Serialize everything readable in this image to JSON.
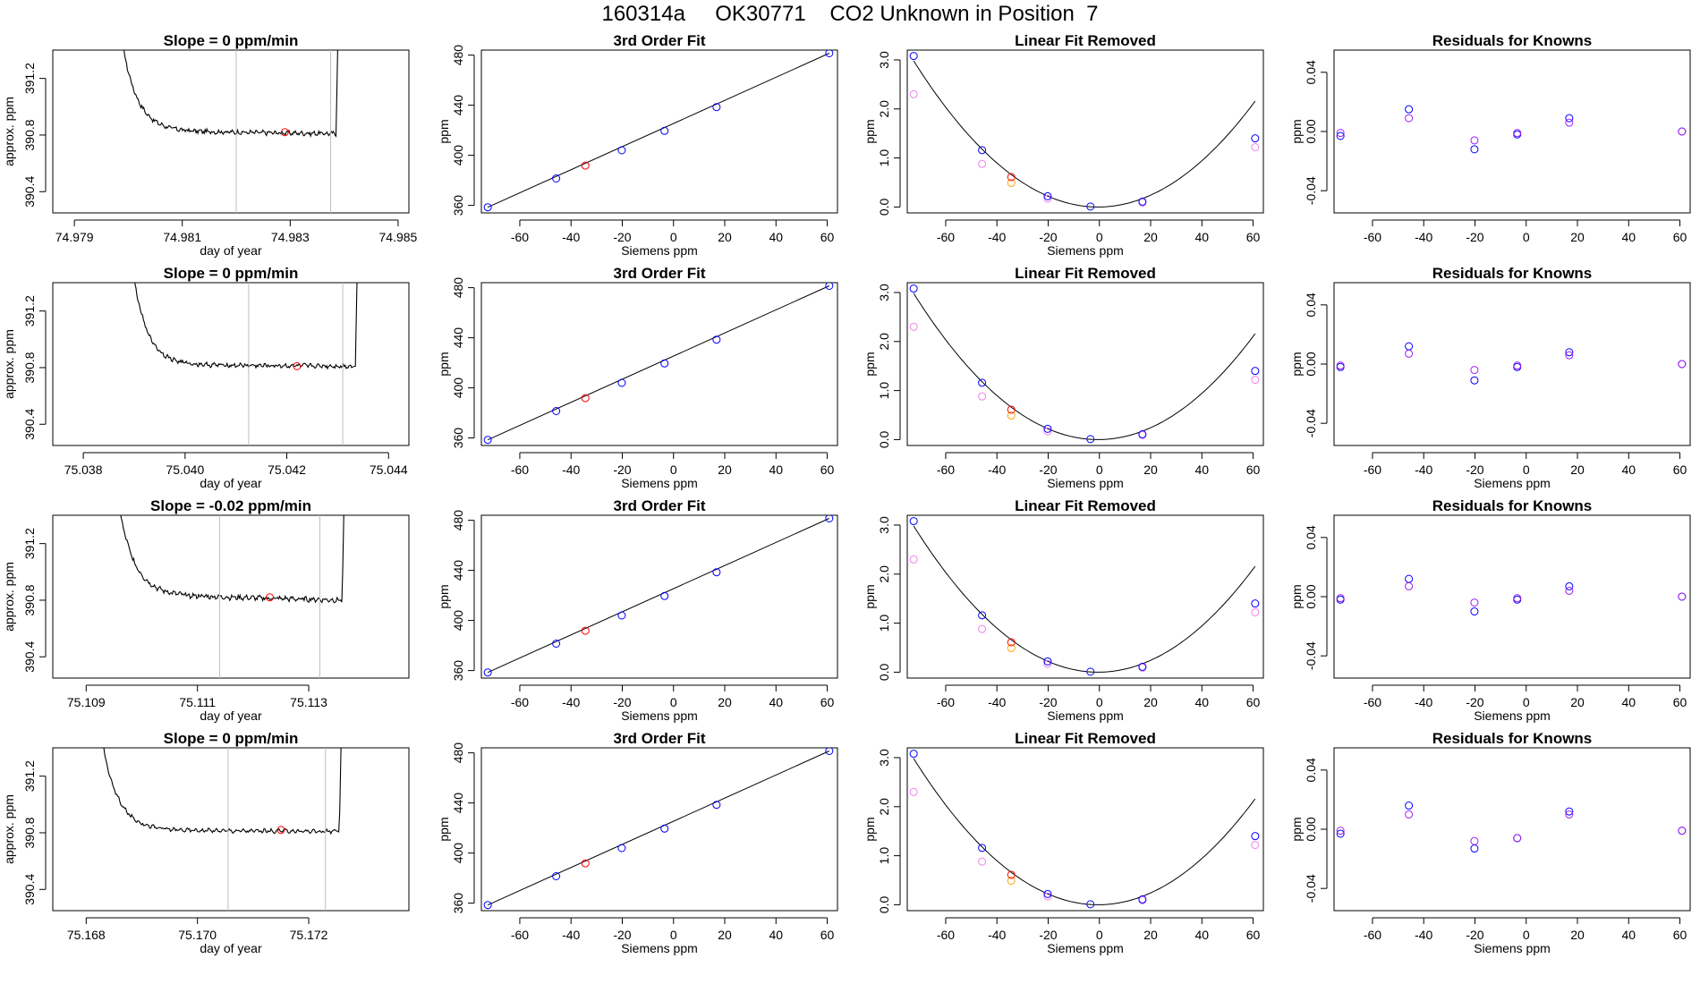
{
  "page_title": "160314a     OK30771    CO2 Unknown in Position  7",
  "colors": {
    "axis": "#000000",
    "trace": "#000000",
    "vline": "#bebebe",
    "blue": "#0000ff",
    "red": "#ff0000",
    "orange": "#ffa500",
    "violet": "#ee82ee",
    "purple": "#a020f0",
    "curve": "#000000"
  },
  "chart_data": [
    {
      "type": "line",
      "panel": "trace",
      "title": "Slope =  0  ppm/min",
      "xlabel": "day of year",
      "ylabel": "approx. ppm",
      "xlim": [
        74.9786,
        74.9852
      ],
      "ylim": [
        390.25,
        391.4
      ],
      "xticks": [
        74.979,
        74.981,
        74.983,
        74.985
      ],
      "xtick_labels": [
        "74.979",
        "74.981",
        "74.983",
        "74.985"
      ],
      "yticks": [
        390.4,
        390.8,
        391.2
      ],
      "ytick_labels": [
        "390.4",
        "390.8",
        "391.2"
      ],
      "trace": {
        "start": 74.9799,
        "rise": 74.98385,
        "plateau": 390.83,
        "drift": -0.02,
        "noise": 0.012,
        "amp": 0.6
      },
      "vlines": [
        74.982,
        74.98375
      ],
      "point": {
        "x": 74.9829,
        "y": 390.82
      }
    },
    {
      "type": "scatter",
      "panel": "fit",
      "title": "3rd Order Fit",
      "xlabel": "Siemens ppm",
      "ylabel": "ppm",
      "xlim": [
        -75,
        64
      ],
      "ylim": [
        354,
        484
      ],
      "xticks": [
        -60,
        -40,
        -20,
        0,
        20,
        40,
        60
      ],
      "yticks": [
        360,
        400,
        440,
        480
      ],
      "ytick_labels": [
        "360",
        "400",
        "440",
        "480"
      ],
      "line": [
        [
          -72.5,
          358.5
        ],
        [
          60.8,
          481.5
        ]
      ],
      "points_blue": [
        [
          -72.5,
          358.5
        ],
        [
          -45.8,
          381.5
        ],
        [
          -20.2,
          404.0
        ],
        [
          -3.5,
          419.5
        ],
        [
          16.8,
          438.5
        ],
        [
          60.8,
          481.5
        ]
      ],
      "points_red": [
        [
          -34.4,
          391.8
        ]
      ]
    },
    {
      "type": "scatter",
      "panel": "linear_removed",
      "title": "Linear Fit Removed",
      "xlabel": "Siemens ppm",
      "ylabel": "ppm",
      "xlim": [
        -75,
        64
      ],
      "ylim": [
        -0.12,
        3.2
      ],
      "xticks": [
        -60,
        -40,
        -20,
        0,
        20,
        40,
        60
      ],
      "yticks": [
        0.0,
        1.0,
        2.0,
        3.0
      ],
      "ytick_labels": [
        "0.0",
        "1.0",
        "2.0",
        "3.0"
      ],
      "curve": {
        "vertex_x": -0.5,
        "vertex_y": 0.0,
        "k": 0.000575,
        "xmin": -72.5,
        "xmax": 60.8
      },
      "points_blue": [
        [
          -72.5,
          3.08
        ],
        [
          -45.8,
          1.16
        ],
        [
          -20.2,
          0.22
        ],
        [
          -3.5,
          0.01
        ],
        [
          16.8,
          0.11
        ],
        [
          60.8,
          1.4
        ]
      ],
      "points_violet": [
        [
          -72.5,
          2.3
        ],
        [
          -45.8,
          0.88
        ],
        [
          -20.2,
          0.17
        ],
        [
          16.8,
          0.09
        ],
        [
          60.8,
          1.22
        ]
      ],
      "points_red": [
        [
          -34.4,
          0.61
        ]
      ],
      "points_orange": [
        [
          -34.4,
          0.49
        ]
      ]
    },
    {
      "type": "scatter",
      "panel": "residuals",
      "title": "Residuals for Knowns",
      "xlabel": "",
      "ylabel": "ppm",
      "xlim": [
        -75,
        64
      ],
      "ylim": [
        -0.055,
        0.055
      ],
      "xticks": [
        -60,
        -40,
        -20,
        0,
        20,
        40,
        60
      ],
      "yticks": [
        -0.04,
        0.0,
        0.04
      ],
      "ytick_labels": [
        "-0.04",
        "0.00",
        "0.04"
      ],
      "points_blue": [
        [
          -72.5,
          -0.003
        ],
        [
          -45.8,
          0.015
        ],
        [
          -20.2,
          -0.012
        ],
        [
          -3.5,
          -0.002
        ],
        [
          16.8,
          0.009
        ],
        [
          60.8,
          0.0
        ]
      ],
      "points_violet": [
        [
          -72.5,
          -0.001
        ],
        [
          -45.8,
          0.009
        ],
        [
          -20.2,
          -0.006
        ],
        [
          -3.5,
          -0.001
        ],
        [
          16.8,
          0.006
        ],
        [
          60.8,
          0.0
        ]
      ]
    },
    {
      "type": "line",
      "panel": "trace",
      "title": "Slope =  0  ppm/min",
      "xlabel": "day of year",
      "ylabel": "approx. ppm",
      "xlim": [
        75.0374,
        75.0444
      ],
      "ylim": [
        390.25,
        391.4
      ],
      "xticks": [
        75.038,
        75.04,
        75.042,
        75.044
      ],
      "xtick_labels": [
        "75.038",
        "75.040",
        "75.042",
        "75.044"
      ],
      "yticks": [
        390.4,
        390.8,
        391.2
      ],
      "ytick_labels": [
        "390.4",
        "390.8",
        "391.2"
      ],
      "trace": {
        "start": 75.039,
        "rise": 75.04335,
        "plateau": 390.82,
        "drift": -0.01,
        "noise": 0.012,
        "amp": 0.6
      },
      "vlines": [
        75.04125,
        75.0431
      ],
      "point": {
        "x": 75.0422,
        "y": 390.81
      }
    },
    {
      "type": "scatter",
      "panel": "fit",
      "title": "3rd Order Fit",
      "xlabel": "Siemens ppm",
      "ylabel": "ppm",
      "xlim": [
        -75,
        64
      ],
      "ylim": [
        354,
        484
      ],
      "xticks": [
        -60,
        -40,
        -20,
        0,
        20,
        40,
        60
      ],
      "yticks": [
        360,
        400,
        440,
        480
      ],
      "ytick_labels": [
        "360",
        "400",
        "440",
        "480"
      ],
      "line": [
        [
          -72.5,
          358.5
        ],
        [
          60.8,
          481.5
        ]
      ],
      "points_blue": [
        [
          -72.5,
          358.5
        ],
        [
          -45.8,
          381.5
        ],
        [
          -20.2,
          404.0
        ],
        [
          -3.5,
          419.5
        ],
        [
          16.8,
          438.5
        ],
        [
          60.8,
          481.5
        ]
      ],
      "points_red": [
        [
          -34.4,
          391.8
        ]
      ]
    },
    {
      "type": "scatter",
      "panel": "linear_removed",
      "title": "Linear Fit Removed",
      "xlabel": "Siemens ppm",
      "ylabel": "ppm",
      "xlim": [
        -75,
        64
      ],
      "ylim": [
        -0.12,
        3.2
      ],
      "xticks": [
        -60,
        -40,
        -20,
        0,
        20,
        40,
        60
      ],
      "yticks": [
        0.0,
        1.0,
        2.0,
        3.0
      ],
      "ytick_labels": [
        "0.0",
        "1.0",
        "2.0",
        "3.0"
      ],
      "curve": {
        "vertex_x": -0.5,
        "vertex_y": 0.0,
        "k": 0.000575,
        "xmin": -72.5,
        "xmax": 60.8
      },
      "points_blue": [
        [
          -72.5,
          3.08
        ],
        [
          -45.8,
          1.16
        ],
        [
          -20.2,
          0.22
        ],
        [
          -3.5,
          0.01
        ],
        [
          16.8,
          0.11
        ],
        [
          60.8,
          1.4
        ]
      ],
      "points_violet": [
        [
          -72.5,
          2.3
        ],
        [
          -45.8,
          0.88
        ],
        [
          -20.2,
          0.17
        ],
        [
          16.8,
          0.09
        ],
        [
          60.8,
          1.22
        ]
      ],
      "points_red": [
        [
          -34.4,
          0.61
        ]
      ],
      "points_orange": [
        [
          -34.4,
          0.49
        ]
      ]
    },
    {
      "type": "scatter",
      "panel": "residuals",
      "title": "Residuals for Knowns",
      "xlabel": "Siemens ppm",
      "ylabel": "ppm",
      "xlim": [
        -75,
        64
      ],
      "ylim": [
        -0.055,
        0.055
      ],
      "xticks": [
        -60,
        -40,
        -20,
        0,
        20,
        40,
        60
      ],
      "yticks": [
        -0.04,
        0.0,
        0.04
      ],
      "ytick_labels": [
        "-0.04",
        "0.00",
        "0.04"
      ],
      "points_blue": [
        [
          -72.5,
          -0.002
        ],
        [
          -45.8,
          0.012
        ],
        [
          -20.2,
          -0.011
        ],
        [
          -3.5,
          -0.002
        ],
        [
          16.8,
          0.008
        ],
        [
          60.8,
          0.0
        ]
      ],
      "points_violet": [
        [
          -72.5,
          -0.001
        ],
        [
          -45.8,
          0.007
        ],
        [
          -20.2,
          -0.004
        ],
        [
          -3.5,
          -0.001
        ],
        [
          16.8,
          0.006
        ],
        [
          60.8,
          0.0
        ]
      ]
    },
    {
      "type": "line",
      "panel": "trace",
      "title": "Slope =  -0.02  ppm/min",
      "xlabel": "day of year",
      "ylabel": "approx. ppm",
      "xlim": [
        75.1084,
        75.1148
      ],
      "ylim": [
        390.25,
        391.4
      ],
      "xticks": [
        75.109,
        75.111,
        75.113
      ],
      "xtick_labels": [
        "75.109",
        "75.111",
        "75.113"
      ],
      "yticks": [
        390.4,
        390.8,
        391.2
      ],
      "ytick_labels": [
        "390.4",
        "390.8",
        "391.2"
      ],
      "trace": {
        "start": 75.1096,
        "rise": 75.1136,
        "plateau": 390.84,
        "drift": -0.04,
        "noise": 0.014,
        "amp": 0.6
      },
      "vlines": [
        75.1114,
        75.1132
      ],
      "point": {
        "x": 75.1123,
        "y": 390.82
      }
    },
    {
      "type": "scatter",
      "panel": "fit",
      "title": "3rd Order Fit",
      "xlabel": "Siemens ppm",
      "ylabel": "ppm",
      "xlim": [
        -75,
        64
      ],
      "ylim": [
        354,
        484
      ],
      "xticks": [
        -60,
        -40,
        -20,
        0,
        20,
        40,
        60
      ],
      "yticks": [
        360,
        400,
        440,
        480
      ],
      "ytick_labels": [
        "360",
        "400",
        "440",
        "480"
      ],
      "line": [
        [
          -72.5,
          358.5
        ],
        [
          60.8,
          481.5
        ]
      ],
      "points_blue": [
        [
          -72.5,
          358.5
        ],
        [
          -45.8,
          381.5
        ],
        [
          -20.2,
          404.0
        ],
        [
          -3.5,
          419.5
        ],
        [
          16.8,
          438.5
        ],
        [
          60.8,
          481.5
        ]
      ],
      "points_red": [
        [
          -34.4,
          391.8
        ]
      ]
    },
    {
      "type": "scatter",
      "panel": "linear_removed",
      "title": "Linear Fit Removed",
      "xlabel": "Siemens ppm",
      "ylabel": "ppm",
      "xlim": [
        -75,
        64
      ],
      "ylim": [
        -0.12,
        3.2
      ],
      "xticks": [
        -60,
        -40,
        -20,
        0,
        20,
        40,
        60
      ],
      "yticks": [
        0.0,
        1.0,
        2.0,
        3.0
      ],
      "ytick_labels": [
        "0.0",
        "1.0",
        "2.0",
        "3.0"
      ],
      "curve": {
        "vertex_x": -0.5,
        "vertex_y": 0.0,
        "k": 0.000575,
        "xmin": -72.5,
        "xmax": 60.8
      },
      "points_blue": [
        [
          -72.5,
          3.08
        ],
        [
          -45.8,
          1.16
        ],
        [
          -20.2,
          0.22
        ],
        [
          -3.5,
          0.01
        ],
        [
          16.8,
          0.11
        ],
        [
          60.8,
          1.4
        ]
      ],
      "points_violet": [
        [
          -72.5,
          2.3
        ],
        [
          -45.8,
          0.88
        ],
        [
          -20.2,
          0.17
        ],
        [
          16.8,
          0.09
        ],
        [
          60.8,
          1.22
        ]
      ],
      "points_red": [
        [
          -34.4,
          0.61
        ]
      ],
      "points_orange": [
        [
          -34.4,
          0.49
        ]
      ]
    },
    {
      "type": "scatter",
      "panel": "residuals",
      "title": "Residuals for Knowns",
      "xlabel": "Siemens ppm",
      "ylabel": "ppm",
      "xlim": [
        -75,
        64
      ],
      "ylim": [
        -0.055,
        0.055
      ],
      "xticks": [
        -60,
        -40,
        -20,
        0,
        20,
        40,
        60
      ],
      "yticks": [
        -0.04,
        0.0,
        0.04
      ],
      "ytick_labels": [
        "-0.04",
        "0.00",
        "0.04"
      ],
      "points_blue": [
        [
          -72.5,
          -0.002
        ],
        [
          -45.8,
          0.012
        ],
        [
          -20.2,
          -0.01
        ],
        [
          -3.5,
          -0.002
        ],
        [
          16.8,
          0.007
        ],
        [
          60.8,
          0.0
        ]
      ],
      "points_violet": [
        [
          -72.5,
          -0.001
        ],
        [
          -45.8,
          0.007
        ],
        [
          -20.2,
          -0.004
        ],
        [
          -3.5,
          -0.001
        ],
        [
          16.8,
          0.004
        ],
        [
          60.8,
          0.0
        ]
      ]
    },
    {
      "type": "line",
      "panel": "trace",
      "title": "Slope =  0  ppm/min",
      "xlabel": "day of year",
      "ylabel": "approx. ppm",
      "xlim": [
        75.1674,
        75.1738
      ],
      "ylim": [
        390.25,
        391.4
      ],
      "xticks": [
        75.168,
        75.17,
        75.172
      ],
      "xtick_labels": [
        "75.168",
        "75.170",
        "75.172"
      ],
      "yticks": [
        390.4,
        390.8,
        391.2
      ],
      "ytick_labels": [
        "390.4",
        "390.8",
        "391.2"
      ],
      "trace": {
        "start": 75.1683,
        "rise": 75.17255,
        "plateau": 390.82,
        "drift": -0.01,
        "noise": 0.01,
        "amp": 0.6
      },
      "vlines": [
        75.17055,
        75.1723
      ],
      "point": {
        "x": 75.1715,
        "y": 390.82
      }
    },
    {
      "type": "scatter",
      "panel": "fit",
      "title": "3rd Order Fit",
      "xlabel": "Siemens ppm",
      "ylabel": "ppm",
      "xlim": [
        -75,
        64
      ],
      "ylim": [
        354,
        484
      ],
      "xticks": [
        -60,
        -40,
        -20,
        0,
        20,
        40,
        60
      ],
      "yticks": [
        360,
        400,
        440,
        480
      ],
      "ytick_labels": [
        "360",
        "400",
        "440",
        "480"
      ],
      "line": [
        [
          -72.5,
          358.5
        ],
        [
          60.8,
          481.5
        ]
      ],
      "points_blue": [
        [
          -72.5,
          358.5
        ],
        [
          -45.8,
          381.5
        ],
        [
          -20.2,
          404.0
        ],
        [
          -3.5,
          419.5
        ],
        [
          16.8,
          438.5
        ],
        [
          60.8,
          481.5
        ]
      ],
      "points_red": [
        [
          -34.4,
          391.8
        ]
      ]
    },
    {
      "type": "scatter",
      "panel": "linear_removed",
      "title": "Linear Fit Removed",
      "xlabel": "Siemens ppm",
      "ylabel": "ppm",
      "xlim": [
        -75,
        64
      ],
      "ylim": [
        -0.12,
        3.2
      ],
      "xticks": [
        -60,
        -40,
        -20,
        0,
        20,
        40,
        60
      ],
      "yticks": [
        0.0,
        1.0,
        2.0,
        3.0
      ],
      "ytick_labels": [
        "0.0",
        "1.0",
        "2.0",
        "3.0"
      ],
      "curve": {
        "vertex_x": -0.5,
        "vertex_y": 0.0,
        "k": 0.000575,
        "xmin": -72.5,
        "xmax": 60.8
      },
      "points_blue": [
        [
          -72.5,
          3.08
        ],
        [
          -45.8,
          1.16
        ],
        [
          -20.2,
          0.22
        ],
        [
          -3.5,
          0.01
        ],
        [
          16.8,
          0.11
        ],
        [
          60.8,
          1.4
        ]
      ],
      "points_violet": [
        [
          -72.5,
          2.3
        ],
        [
          -45.8,
          0.88
        ],
        [
          -20.2,
          0.17
        ],
        [
          16.8,
          0.09
        ],
        [
          60.8,
          1.22
        ]
      ],
      "points_red": [
        [
          -34.4,
          0.61
        ]
      ],
      "points_orange": [
        [
          -34.4,
          0.49
        ]
      ]
    },
    {
      "type": "scatter",
      "panel": "residuals",
      "title": "Residuals for Knowns",
      "xlabel": "Siemens ppm",
      "ylabel": "ppm",
      "xlim": [
        -75,
        64
      ],
      "ylim": [
        -0.055,
        0.055
      ],
      "xticks": [
        -60,
        -40,
        -20,
        0,
        20,
        40,
        60
      ],
      "yticks": [
        -0.04,
        0.0,
        0.04
      ],
      "ytick_labels": [
        "-0.04",
        "0.00",
        "0.04"
      ],
      "points_blue": [
        [
          -72.5,
          -0.003
        ],
        [
          -45.8,
          0.016
        ],
        [
          -20.2,
          -0.013
        ],
        [
          -3.5,
          -0.006
        ],
        [
          16.8,
          0.012
        ],
        [
          60.8,
          -0.001
        ]
      ],
      "points_violet": [
        [
          -72.5,
          -0.001
        ],
        [
          -45.8,
          0.01
        ],
        [
          -20.2,
          -0.008
        ],
        [
          -3.5,
          -0.006
        ],
        [
          16.8,
          0.01
        ],
        [
          60.8,
          -0.001
        ]
      ]
    }
  ]
}
